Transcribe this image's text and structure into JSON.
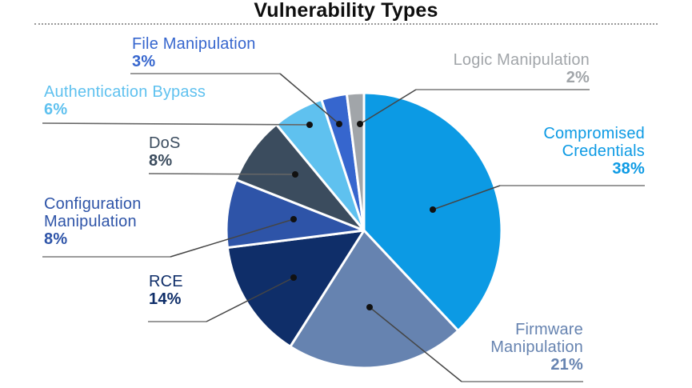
{
  "title": "Vulnerability Types",
  "chart_data": {
    "type": "pie",
    "title": "Vulnerability Types",
    "start_angle_deg": 0,
    "direction": "clockwise",
    "legend_position": "callout-labels",
    "categories": [
      "Compromised Credentials",
      "Firmware Manipulation",
      "RCE",
      "Configuration Manipulation",
      "DoS",
      "Authentication Bypass",
      "File Manipulation",
      "Logic Manipulation"
    ],
    "values": [
      38,
      21,
      14,
      8,
      8,
      6,
      3,
      2
    ],
    "slices": [
      {
        "id": "compromised-credentials",
        "lines": [
          "Compromised",
          "Credentials"
        ],
        "pct": "38%",
        "value": 38,
        "color": "#0C9AE4"
      },
      {
        "id": "firmware-manipulation",
        "lines": [
          "Firmware",
          "Manipulation"
        ],
        "pct": "21%",
        "value": 21,
        "color": "#6683B0"
      },
      {
        "id": "rce",
        "lines": [
          "RCE"
        ],
        "pct": "14%",
        "value": 14,
        "color": "#0F2E69"
      },
      {
        "id": "configuration-manipulation",
        "lines": [
          "Configuration",
          "Manipulation"
        ],
        "pct": "8%",
        "value": 8,
        "color": "#2E54A8"
      },
      {
        "id": "dos",
        "lines": [
          "DoS"
        ],
        "pct": "8%",
        "value": 8,
        "color": "#3B4C5E"
      },
      {
        "id": "authentication-bypass",
        "lines": [
          "Authentication Bypass"
        ],
        "pct": "6%",
        "value": 6,
        "color": "#5FC1EF"
      },
      {
        "id": "file-manipulation",
        "lines": [
          "File Manipulation"
        ],
        "pct": "3%",
        "value": 3,
        "color": "#3666CE"
      },
      {
        "id": "logic-manipulation",
        "lines": [
          "Logic Manipulation"
        ],
        "pct": "2%",
        "value": 2,
        "color": "#A1A5A9"
      }
    ],
    "colors": {
      "slice_separator": "#FFFFFF",
      "leader_underline": "#9B9B9B",
      "leader_line": "#454545",
      "leader_dot": "#111111",
      "title": "#0E0E0E"
    }
  }
}
